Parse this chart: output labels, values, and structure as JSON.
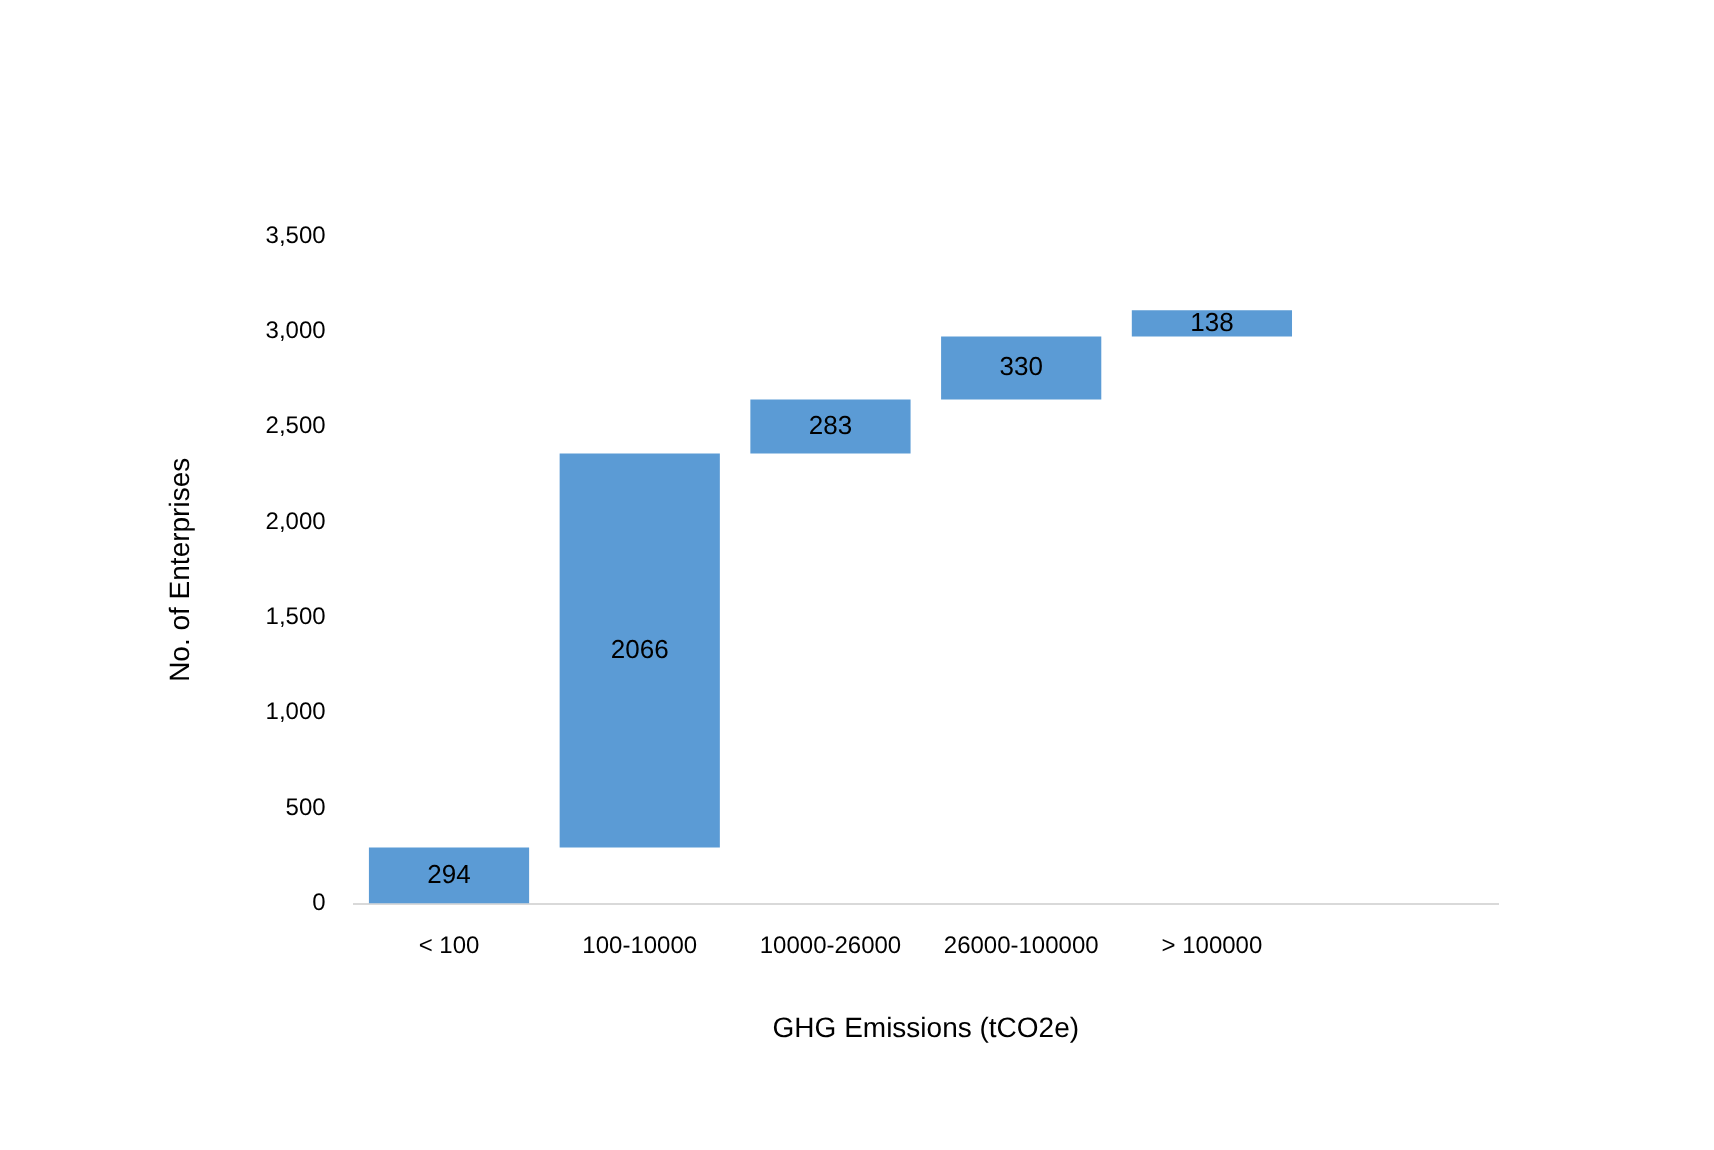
{
  "chart_data": {
    "type": "bar",
    "xlabel": "GHG Emissions (tCO2e)",
    "ylabel": "No. of Enterprises",
    "categories": [
      "< 100",
      "100-10000",
      "10000-26000",
      "26000-100000",
      "> 100000",
      null
    ],
    "values": [
      294,
      2066,
      283,
      330,
      138,
      null
    ],
    "base": [
      0,
      294,
      2360,
      2643,
      2973,
      null
    ],
    "color": "#5b9bd5",
    "ylim": [
      0,
      3500
    ],
    "yticks": [
      0,
      500,
      {
        "value": 1000,
        "label": "1,000"
      },
      {
        "value": 1500,
        "label": "1,500"
      },
      {
        "value": 2000,
        "label": "2,000"
      },
      {
        "value": 2500,
        "label": "2,500"
      },
      {
        "value": 3000,
        "label": "3,000"
      },
      {
        "value": 3500,
        "label": "3,500"
      }
    ],
    "grid": false,
    "legend": false,
    "data_labels": true
  }
}
